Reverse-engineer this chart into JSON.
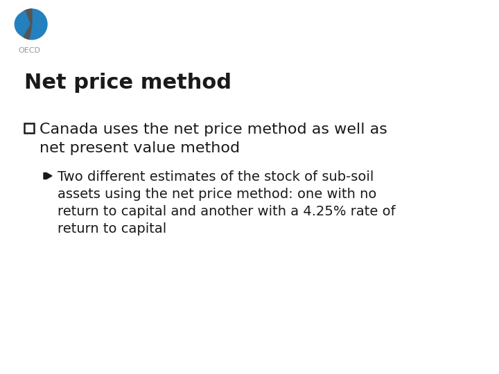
{
  "title": "Net price method",
  "background_color": "#ffffff",
  "title_fontsize": 22,
  "title_fontweight": "bold",
  "text_color": "#1a1a1a",
  "bullet1_line1": "Canada uses the net price method as well as",
  "bullet1_line2": "net present value method",
  "bullet1_fontsize": 16,
  "sub_lines": [
    "Two different estimates of the stock of sub-soil",
    "assets using the net price method: one with no",
    "return to capital and another with a 4.25% rate of",
    "return to capital"
  ],
  "sub_fontsize": 14,
  "oecd_blue": "#2580be",
  "oecd_gray": "#999999",
  "oecd_dark": "#333333"
}
